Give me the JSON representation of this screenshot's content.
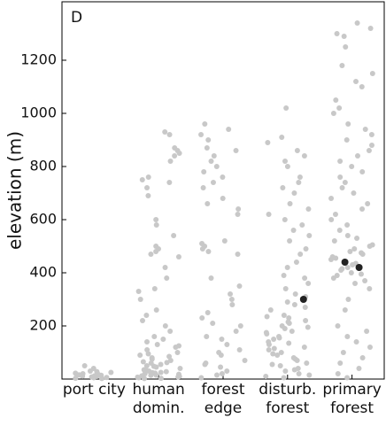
{
  "chart_data": {
    "type": "strip",
    "panel_label": "D",
    "y_label": "elevation (m)",
    "categories": [
      "port city",
      "human domin.",
      "forest edge",
      "disturb. forest",
      "primary forest"
    ],
    "values": [
      [
        5,
        10,
        15,
        20,
        8,
        12,
        3,
        25,
        18,
        30,
        50,
        6,
        14,
        22,
        9,
        11,
        2,
        16,
        28,
        40
      ],
      [
        2,
        5,
        8,
        10,
        12,
        15,
        18,
        20,
        22,
        25,
        28,
        30,
        35,
        40,
        45,
        50,
        55,
        60,
        65,
        70,
        75,
        80,
        90,
        100,
        110,
        120,
        130,
        140,
        150,
        160,
        180,
        200,
        220,
        240,
        260,
        300,
        330,
        340,
        380,
        420,
        460,
        470,
        480,
        490,
        500,
        540,
        580,
        600,
        690,
        720,
        740,
        750,
        760,
        820,
        840,
        850,
        860,
        870,
        920,
        930,
        3,
        7,
        14,
        24,
        33,
        48,
        62,
        85,
        95,
        125
      ],
      [
        5,
        15,
        30,
        45,
        55,
        70,
        90,
        110,
        130,
        150,
        160,
        180,
        200,
        210,
        230,
        250,
        280,
        300,
        320,
        350,
        380,
        470,
        480,
        490,
        500,
        510,
        520,
        620,
        640,
        660,
        680,
        720,
        740,
        760,
        780,
        800,
        820,
        840,
        860,
        870,
        900,
        920,
        940,
        960,
        100,
        60,
        20
      ],
      [
        5,
        10,
        20,
        30,
        40,
        50,
        60,
        70,
        80,
        90,
        100,
        110,
        120,
        130,
        140,
        150,
        160,
        170,
        180,
        190,
        200,
        210,
        220,
        230,
        240,
        260,
        270,
        280,
        290,
        310,
        320,
        340,
        360,
        380,
        390,
        420,
        440,
        470,
        490,
        520,
        540,
        560,
        580,
        600,
        620,
        640,
        660,
        700,
        720,
        740,
        760,
        800,
        820,
        840,
        860,
        890,
        910,
        1020,
        15,
        35,
        55,
        75,
        95,
        115,
        135,
        155,
        175,
        195,
        215,
        235
      ],
      [
        5,
        20,
        40,
        60,
        80,
        100,
        120,
        140,
        160,
        180,
        200,
        260,
        300,
        340,
        360,
        380,
        390,
        400,
        410,
        420,
        430,
        440,
        450,
        460,
        470,
        480,
        490,
        500,
        520,
        540,
        560,
        580,
        600,
        620,
        640,
        660,
        680,
        700,
        720,
        740,
        760,
        780,
        800,
        820,
        840,
        860,
        880,
        900,
        920,
        940,
        960,
        1000,
        1020,
        1050,
        1100,
        1120,
        1150,
        1180,
        1250,
        1290,
        1300,
        1320,
        1340,
        370,
        395,
        415,
        435,
        455,
        475,
        505,
        530
      ]
    ],
    "highlight": [
      [],
      [],
      [],
      [
        300
      ],
      [
        440,
        420
      ]
    ],
    "color": "#c8c8c8",
    "highlight_color": "#222222",
    "ylim": [
      0,
      1420
    ],
    "yticks": [
      200,
      400,
      600,
      800,
      1000,
      1200
    ],
    "grid": false
  }
}
